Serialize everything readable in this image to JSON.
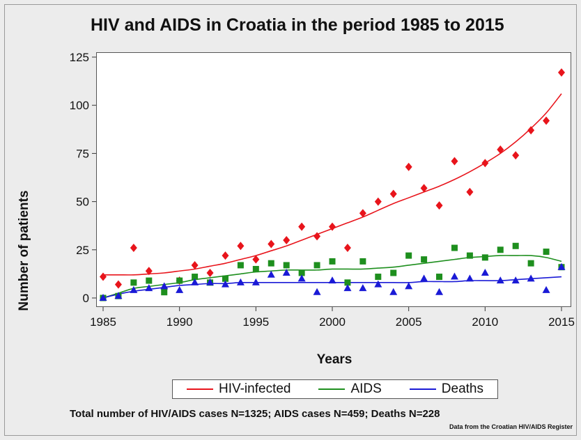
{
  "chart_data": {
    "type": "scatter",
    "title": "HIV and AIDS in Croatia in the period 1985 to 2015",
    "xlabel": "Years",
    "ylabel": "Number of patients",
    "xlim": [
      1985,
      2015
    ],
    "ylim": [
      0,
      125
    ],
    "x_ticks": [
      1985,
      1990,
      1995,
      2000,
      2005,
      2010,
      2015
    ],
    "y_ticks": [
      0,
      25,
      50,
      75,
      100,
      125
    ],
    "grid": false,
    "legend_placement": "bottom",
    "x": [
      1985,
      1986,
      1987,
      1988,
      1989,
      1990,
      1991,
      1992,
      1993,
      1994,
      1995,
      1996,
      1997,
      1998,
      1999,
      2000,
      2001,
      2002,
      2003,
      2004,
      2005,
      2006,
      2007,
      2008,
      2009,
      2010,
      2011,
      2012,
      2013,
      2014,
      2015
    ],
    "series": [
      {
        "name": "HIV-infected",
        "color": "#e8141b",
        "marker": "diamond",
        "values": [
          11,
          7,
          26,
          14,
          5,
          9,
          17,
          13,
          22,
          27,
          20,
          28,
          30,
          37,
          32,
          37,
          26,
          44,
          50,
          54,
          68,
          57,
          48,
          71,
          55,
          70,
          77,
          74,
          87,
          92,
          117
        ],
        "fit": [
          12,
          12,
          12,
          12.5,
          13,
          14,
          15,
          16.5,
          18,
          20,
          22,
          24.5,
          27,
          30,
          33,
          36,
          39,
          42,
          45.5,
          49,
          52,
          55,
          58,
          61.5,
          65.5,
          70,
          75,
          81,
          88,
          96,
          106
        ]
      },
      {
        "name": "AIDS",
        "color": "#1e8f1e",
        "marker": "square",
        "values": [
          0,
          1,
          8,
          9,
          3,
          9,
          11,
          8,
          10,
          17,
          15,
          18,
          17,
          13,
          17,
          19,
          8,
          19,
          11,
          13,
          22,
          20,
          11,
          26,
          22,
          21,
          25,
          27,
          18,
          24,
          16
        ],
        "fit": [
          0,
          2.5,
          5,
          6,
          7,
          8,
          9.5,
          10.5,
          11.5,
          12.5,
          13.5,
          14,
          14.5,
          14.5,
          14.5,
          15,
          15,
          15,
          15.5,
          16,
          17,
          18,
          19,
          20,
          21,
          21.5,
          22,
          22,
          22,
          21,
          19
        ]
      },
      {
        "name": "Deaths",
        "color": "#1a1ad6",
        "marker": "triangle",
        "values": [
          0,
          1,
          4,
          5,
          6,
          4,
          8,
          8,
          7,
          8,
          8,
          12,
          13,
          10,
          3,
          9,
          5,
          5,
          7,
          3,
          6,
          10,
          3,
          11,
          10,
          13,
          9,
          9,
          10,
          4,
          16
        ],
        "fit": [
          0,
          2,
          3.5,
          4.5,
          5.5,
          6.5,
          7,
          7.5,
          7.5,
          8,
          8,
          8,
          8,
          8,
          8,
          8,
          8,
          8,
          8,
          8,
          8,
          8.5,
          8.5,
          8.5,
          9,
          9,
          9,
          9.5,
          10,
          10.5,
          11
        ]
      }
    ]
  },
  "footnote": "Total number of HIV/AIDS cases N=1325; AIDS cases N=459; Deaths N=228",
  "source": "Data from the Croatian HIV/AIDS Register"
}
